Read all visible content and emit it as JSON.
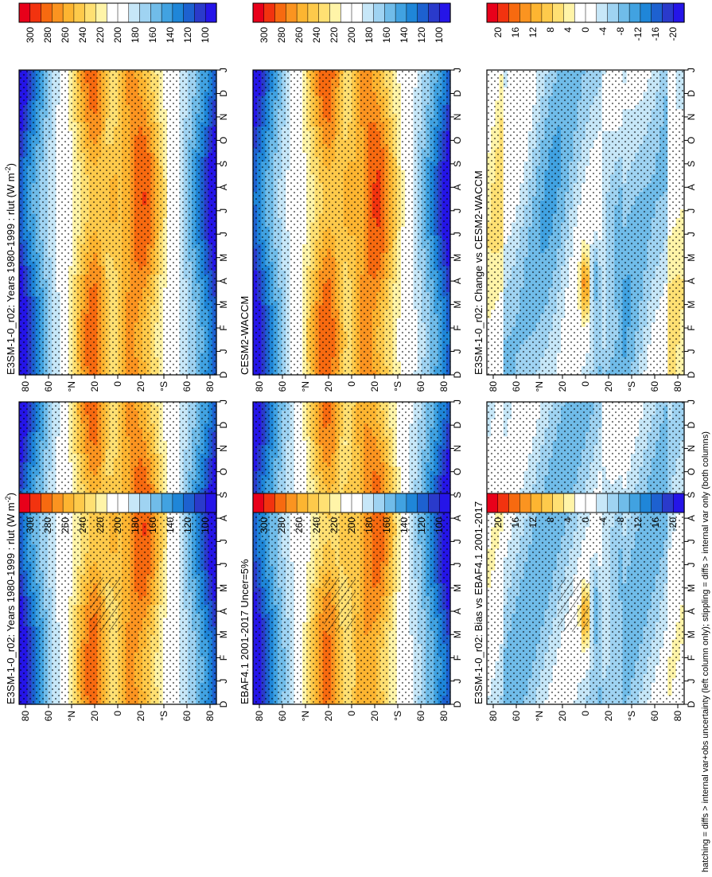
{
  "figure": {
    "footnote": "hatching = diffs > internal var+obs uncertainty (left column only); stippling = diffs > internal var only (both columns)"
  },
  "colors": {
    "absolute_scale": [
      "#e8001a",
      "#f2330f",
      "#f76a10",
      "#fb9420",
      "#fdb531",
      "#feca4b",
      "#ffe073",
      "#fff4a8",
      "#ffffff",
      "#ffffff",
      "#c7e7f8",
      "#9fd3f2",
      "#70bce9",
      "#41a2e1",
      "#1f86d8",
      "#1d61d0",
      "#2a3acb",
      "#2515e8"
    ],
    "diff_scale": [
      "#e8001a",
      "#f2330f",
      "#f76a10",
      "#fb9420",
      "#fdb531",
      "#feca4b",
      "#ffe073",
      "#fff4a8",
      "#ffffff",
      "#ffffff",
      "#c7e7f8",
      "#9fd3f2",
      "#70bce9",
      "#41a2e1",
      "#1f86d8",
      "#1d61d0",
      "#2a3acb",
      "#2515e8"
    ]
  },
  "axes": {
    "month_labels": [
      "D",
      "J",
      "F",
      "M",
      "A",
      "M",
      "J",
      "J",
      "A",
      "S",
      "O",
      "N",
      "D",
      "J"
    ],
    "lat_labels": [
      "80",
      "60",
      "°N",
      "20",
      "0",
      "20",
      "°S",
      "60",
      "80"
    ]
  },
  "chart_data": [
    {
      "type": "heatmap",
      "title": "E3SM-1-0_r02: Years 1980-1999 : rlut (W m",
      "title_superscript": "-2",
      "title_end": ")",
      "colorbar_ticks": [
        "300",
        "280",
        "260",
        "240",
        "220",
        "200",
        "180",
        "160",
        "140",
        "120",
        "100"
      ],
      "vmin": 90,
      "vmax": 310,
      "scale": "absolute",
      "x": "month",
      "y": "latitude",
      "ylim": [
        -90,
        90
      ],
      "field": "olr_model",
      "hatched": true,
      "stippled": true
    },
    {
      "type": "heatmap",
      "title": "E3SM-1-0_r02: Years 1980-1999 : rlut (W m",
      "title_superscript": "-2",
      "title_end": ")",
      "colorbar_ticks": [
        "300",
        "280",
        "260",
        "240",
        "220",
        "200",
        "180",
        "160",
        "140",
        "120",
        "100"
      ],
      "vmin": 90,
      "vmax": 310,
      "scale": "absolute",
      "x": "month",
      "y": "latitude",
      "ylim": [
        -90,
        90
      ],
      "field": "olr_model",
      "hatched": false,
      "stippled": true
    },
    {
      "type": "heatmap",
      "title": "EBAF4.1 2001-2017 Uncer=5%",
      "colorbar_ticks": [
        "300",
        "280",
        "260",
        "240",
        "220",
        "200",
        "180",
        "160",
        "140",
        "120",
        "100"
      ],
      "vmin": 90,
      "vmax": 310,
      "scale": "absolute",
      "x": "month",
      "y": "latitude",
      "ylim": [
        -90,
        90
      ],
      "field": "olr_obs",
      "hatched": true,
      "stippled": true
    },
    {
      "type": "heatmap",
      "title": "CESM2-WACCM",
      "colorbar_ticks": [
        "300",
        "280",
        "260",
        "240",
        "220",
        "200",
        "180",
        "160",
        "140",
        "120",
        "100"
      ],
      "vmin": 90,
      "vmax": 310,
      "scale": "absolute",
      "x": "month",
      "y": "latitude",
      "ylim": [
        -90,
        90
      ],
      "field": "olr_cesm",
      "hatched": false,
      "stippled": true
    },
    {
      "type": "heatmap",
      "title": "E3SM-1-0_r02: Bias vs EBAF4.1 2001-2017",
      "colorbar_ticks": [
        "20",
        "16",
        "12",
        "8",
        "4",
        "0",
        "-4",
        "-8",
        "-12",
        "-16",
        "-20"
      ],
      "vmin": -22,
      "vmax": 22,
      "scale": "diff",
      "x": "month",
      "y": "latitude",
      "ylim": [
        -90,
        90
      ],
      "field": "bias_obs",
      "hatched": true,
      "stippled": true
    },
    {
      "type": "heatmap",
      "title": "E3SM-1-0_r02: Change vs CESM2-WACCM",
      "colorbar_ticks": [
        "20",
        "16",
        "12",
        "8",
        "4",
        "0",
        "-4",
        "-8",
        "-12",
        "-16",
        "-20"
      ],
      "vmin": -22,
      "vmax": 22,
      "scale": "diff",
      "x": "month",
      "y": "latitude",
      "ylim": [
        -90,
        90
      ],
      "field": "bias_cesm",
      "hatched": false,
      "stippled": true
    }
  ]
}
